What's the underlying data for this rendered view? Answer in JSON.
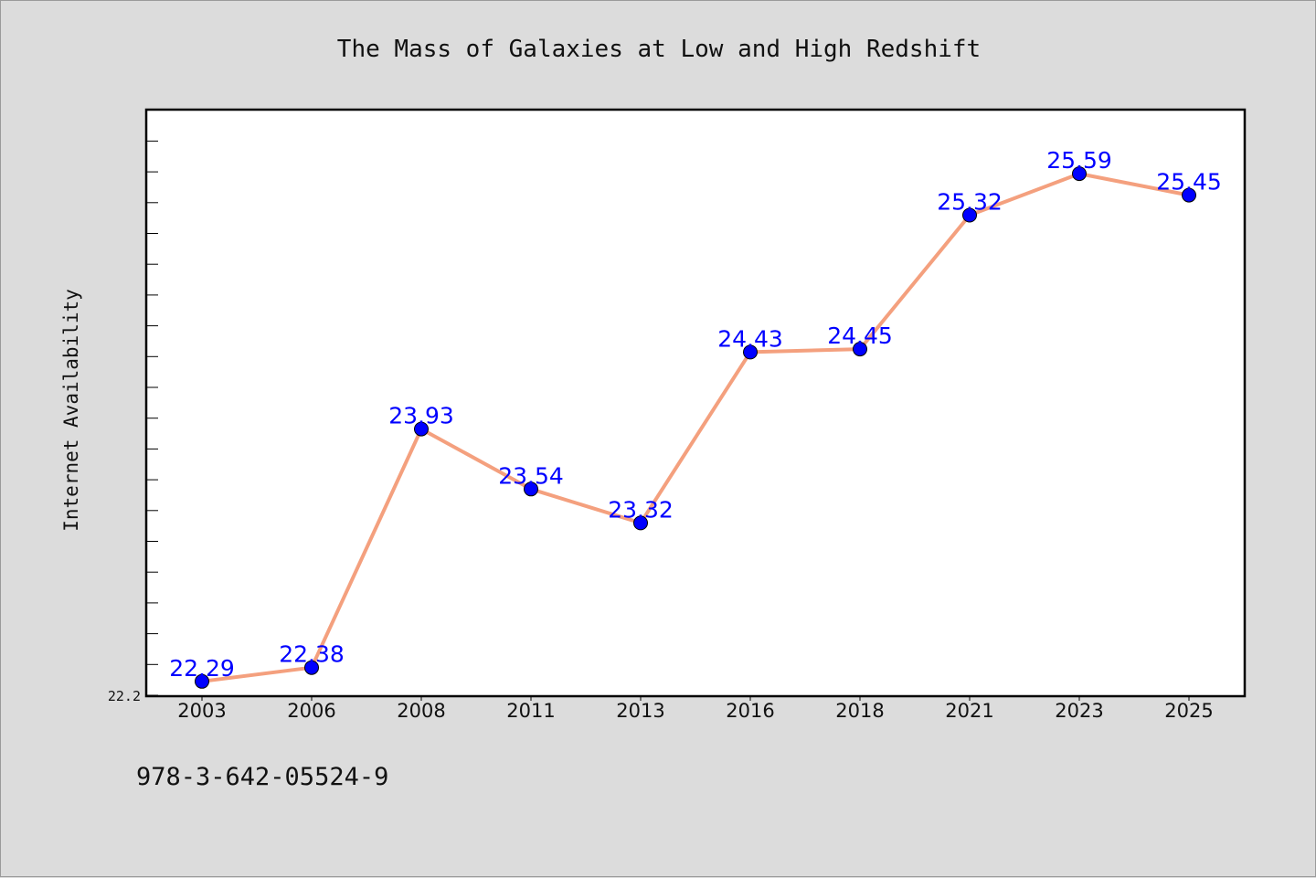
{
  "chart_data": {
    "type": "line",
    "title": "The Mass of Galaxies at Low and High Redshift",
    "ylabel": "Internet Availability",
    "categories": [
      "2003",
      "2006",
      "2008",
      "2011",
      "2013",
      "2016",
      "2018",
      "2021",
      "2023",
      "2025"
    ],
    "values": [
      22.29,
      22.38,
      23.93,
      23.54,
      23.32,
      24.43,
      24.45,
      25.32,
      25.59,
      25.45
    ],
    "data_labels": [
      "22.29",
      "22.38",
      "23.93",
      "23.54",
      "23.32",
      "24.43",
      "24.45",
      "25.32",
      "25.59",
      "25.45"
    ],
    "ylim": [
      22.2,
      26.0
    ],
    "ytick_label": "22.2",
    "grid": false,
    "legend": "none",
    "line_color": "#f4a07e",
    "marker_color": "#0000ff",
    "label_color": "#0000ff"
  },
  "footer": {
    "isbn": "978-3-642-05524-9"
  }
}
